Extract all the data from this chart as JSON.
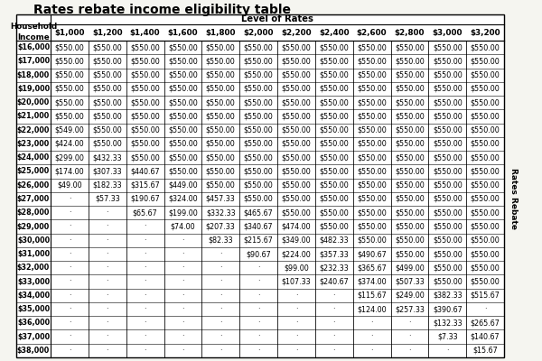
{
  "title": "Rates rebate income eligibility table",
  "col_header_top": "Level of Rates",
  "col_header_left1": "Household",
  "col_header_left2": "Income",
  "rate_levels": [
    "$1,000",
    "$1,200",
    "$1,400",
    "$1,600",
    "$1,800",
    "$2,000",
    "$2,200",
    "$2,400",
    "$2,600",
    "$2,800",
    "$3,000",
    "$3,200"
  ],
  "incomes": [
    "$16,000",
    "$17,000",
    "$18,000",
    "$19,000",
    "$20,000",
    "$21,000",
    "$22,000",
    "$23,000",
    "$24,000",
    "$25,000",
    "$26,000",
    "$27,000",
    "$28,000",
    "$29,000",
    "$30,000",
    "$31,000",
    "$32,000",
    "$33,000",
    "$34,000",
    "$35,000",
    "$36,000",
    "$37,000",
    "$38,000"
  ],
  "table_data": [
    [
      "$550.00",
      "$550.00",
      "$550.00",
      "$550.00",
      "$550.00",
      "$550.00",
      "$550.00",
      "$550.00",
      "$550.00",
      "$550.00",
      "$550.00",
      "$550.00"
    ],
    [
      "$550.00",
      "$550.00",
      "$550.00",
      "$550.00",
      "$550.00",
      "$550.00",
      "$550.00",
      "$550.00",
      "$550.00",
      "$550.00",
      "$550.00",
      "$550.00"
    ],
    [
      "$550.00",
      "$550.00",
      "$550.00",
      "$550.00",
      "$550.00",
      "$550.00",
      "$550.00",
      "$550.00",
      "$550.00",
      "$550.00",
      "$550.00",
      "$550.00"
    ],
    [
      "$550.00",
      "$550.00",
      "$550.00",
      "$550.00",
      "$550.00",
      "$550.00",
      "$550.00",
      "$550.00",
      "$550.00",
      "$550.00",
      "$550.00",
      "$550.00"
    ],
    [
      "$550.00",
      "$550.00",
      "$550.00",
      "$550.00",
      "$550.00",
      "$550.00",
      "$550.00",
      "$550.00",
      "$550.00",
      "$550.00",
      "$550.00",
      "$550.00"
    ],
    [
      "$550.00",
      "$550.00",
      "$550.00",
      "$550.00",
      "$550.00",
      "$550.00",
      "$550.00",
      "$550.00",
      "$550.00",
      "$550.00",
      "$550.00",
      "$550.00"
    ],
    [
      "$549.00",
      "$550.00",
      "$550.00",
      "$550.00",
      "$550.00",
      "$550.00",
      "$550.00",
      "$550.00",
      "$550.00",
      "$550.00",
      "$550.00",
      "$550.00"
    ],
    [
      "$424.00",
      "$550.00",
      "$550.00",
      "$550.00",
      "$550.00",
      "$550.00",
      "$550.00",
      "$550.00",
      "$550.00",
      "$550.00",
      "$550.00",
      "$550.00"
    ],
    [
      "$299.00",
      "$432.33",
      "$550.00",
      "$550.00",
      "$550.00",
      "$550.00",
      "$550.00",
      "$550.00",
      "$550.00",
      "$550.00",
      "$550.00",
      "$550.00"
    ],
    [
      "$174.00",
      "$307.33",
      "$440.67",
      "$550.00",
      "$550.00",
      "$550.00",
      "$550.00",
      "$550.00",
      "$550.00",
      "$550.00",
      "$550.00",
      "$550.00"
    ],
    [
      "$49.00",
      "$182.33",
      "$315.67",
      "$449.00",
      "$550.00",
      "$550.00",
      "$550.00",
      "$550.00",
      "$550.00",
      "$550.00",
      "$550.00",
      "$550.00"
    ],
    [
      "-",
      "$57.33",
      "$190.67",
      "$324.00",
      "$457.33",
      "$550.00",
      "$550.00",
      "$550.00",
      "$550.00",
      "$550.00",
      "$550.00",
      "$550.00"
    ],
    [
      "-",
      "-",
      "$65.67",
      "$199.00",
      "$332.33",
      "$465.67",
      "$550.00",
      "$550.00",
      "$550.00",
      "$550.00",
      "$550.00",
      "$550.00"
    ],
    [
      "-",
      "-",
      "-",
      "$74.00",
      "$207.33",
      "$340.67",
      "$474.00",
      "$550.00",
      "$550.00",
      "$550.00",
      "$550.00",
      "$550.00"
    ],
    [
      "-",
      "-",
      "-",
      "-",
      "$82.33",
      "$215.67",
      "$349.00",
      "$482.33",
      "$550.00",
      "$550.00",
      "$550.00",
      "$550.00"
    ],
    [
      "-",
      "-",
      "-",
      "-",
      "-",
      "$90.67",
      "$224.00",
      "$357.33",
      "$490.67",
      "$550.00",
      "$550.00",
      "$550.00"
    ],
    [
      "-",
      "-",
      "-",
      "-",
      "-",
      "-",
      "$99.00",
      "$232.33",
      "$365.67",
      "$499.00",
      "$550.00",
      "$550.00"
    ],
    [
      "-",
      "-",
      "-",
      "-",
      "-",
      "-",
      "$107.33",
      "$240.67",
      "$374.00",
      "$507.33",
      "$550.00",
      "$550.00"
    ],
    [
      "-",
      "-",
      "-",
      "-",
      "-",
      "-",
      "-",
      "-",
      "$115.67",
      "$249.00",
      "$382.33",
      "$515.67"
    ],
    [
      "-",
      "-",
      "-",
      "-",
      "-",
      "-",
      "-",
      "-",
      "$124.00",
      "$257.33",
      "$390.67",
      "-"
    ],
    [
      "-",
      "-",
      "-",
      "-",
      "-",
      "-",
      "-",
      "-",
      "-",
      "-",
      "$132.33",
      "$265.67"
    ],
    [
      "-",
      "-",
      "-",
      "-",
      "-",
      "-",
      "-",
      "-",
      "-",
      "-",
      "$7.33",
      "$140.67"
    ],
    [
      "-",
      "-",
      "-",
      "-",
      "-",
      "-",
      "-",
      "-",
      "-",
      "-",
      "-",
      "$15.67"
    ]
  ],
  "sidebar_text": "Rates Rebate",
  "bg_color": "#f5f5f0",
  "title_fontsize": 10,
  "cell_fontsize": 5.8,
  "header_fontsize": 6.8,
  "col_header_fontsize": 7.2
}
